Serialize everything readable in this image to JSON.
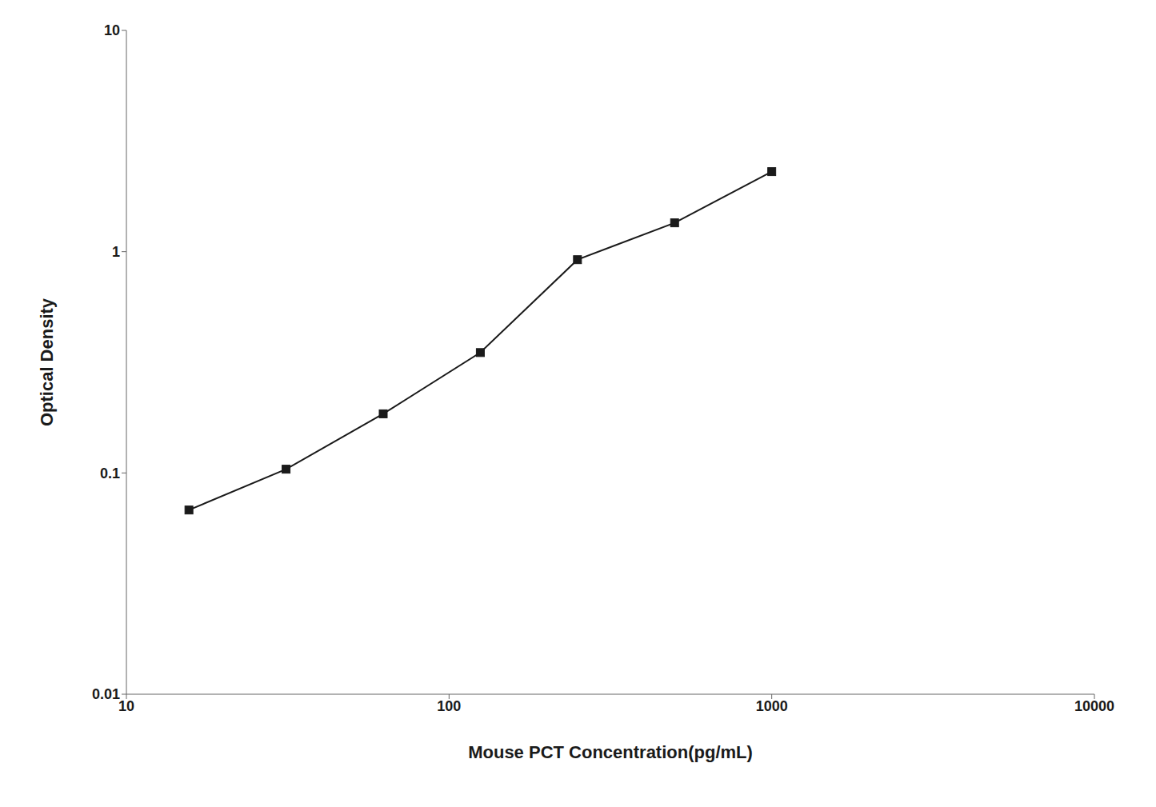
{
  "chart_data": {
    "type": "line",
    "x": [
      15.625,
      31.25,
      62.5,
      125,
      250,
      500,
      1000
    ],
    "values": [
      0.068,
      0.104,
      0.185,
      0.35,
      0.92,
      1.35,
      2.3
    ],
    "xlabel": "Mouse PCT Concentration(pg/mL)",
    "ylabel": "Optical Density",
    "log": true,
    "xlim": [
      10,
      10000
    ],
    "ylim": [
      0.01,
      10
    ],
    "xticks": [
      10,
      100,
      1000,
      10000
    ],
    "yticks": [
      0.01,
      0.1,
      1,
      10
    ],
    "color": "#1a1a1a",
    "marker": "square",
    "grid": false
  }
}
